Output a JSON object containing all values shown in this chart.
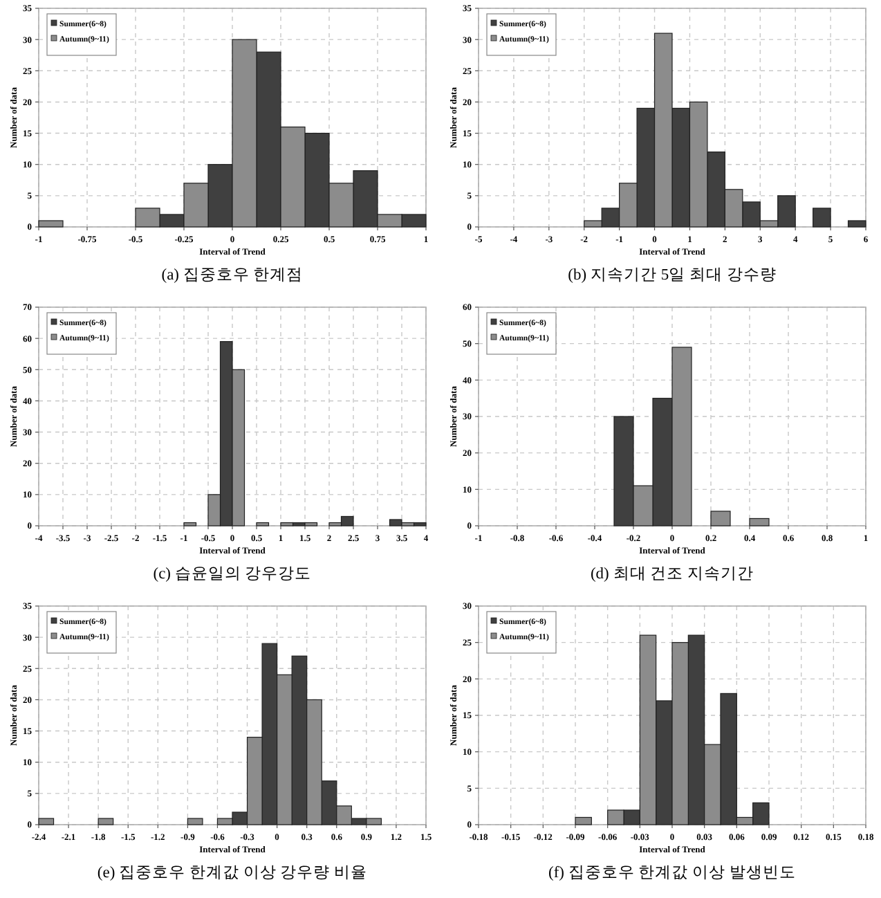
{
  "chart_data": [
    {
      "type": "bar",
      "title": "(a) 집중호우 한계점",
      "xlabel": "Interval of Trend",
      "ylabel": "Number of data",
      "legend": "top left",
      "grid": true,
      "xlim": [
        -1,
        1
      ],
      "xticks": [
        -1,
        -0.75,
        -0.5,
        -0.25,
        0,
        0.25,
        0.5,
        0.75,
        1
      ],
      "ylim": [
        0,
        35
      ],
      "yticks": [
        0,
        5,
        10,
        15,
        20,
        25,
        30,
        35
      ],
      "series": [
        {
          "name": "Summer(6~8)",
          "color": "#404040",
          "x": [
            -0.3125,
            -0.0625,
            0.1875,
            0.4375,
            0.6875,
            0.9375
          ],
          "values": [
            2,
            10,
            28,
            15,
            9,
            2
          ]
        },
        {
          "name": "Autumn(9~11)",
          "color": "#8c8c8c",
          "x": [
            -0.9375,
            -0.4375,
            -0.1875,
            0.0625,
            0.3125,
            0.5625,
            0.8125
          ],
          "values": [
            1,
            3,
            7,
            30,
            16,
            7,
            2
          ]
        }
      ]
    },
    {
      "type": "bar",
      "title": "(b) 지속기간 5일 최대 강수량",
      "xlabel": "Interval of Trend",
      "ylabel": "Number of data",
      "legend": "top left",
      "grid": true,
      "xlim": [
        -5,
        6
      ],
      "xticks": [
        -5,
        -4,
        -3,
        -2,
        -1,
        0,
        1,
        2,
        3,
        4,
        5,
        6
      ],
      "ylim": [
        0,
        35
      ],
      "yticks": [
        0,
        5,
        10,
        15,
        20,
        25,
        30,
        35
      ],
      "series": [
        {
          "name": "Summer(6~8)",
          "color": "#404040",
          "x": [
            -1.25,
            -0.25,
            0.75,
            1.75,
            2.75,
            3.75,
            4.75,
            5.75
          ],
          "values": [
            3,
            19,
            19,
            12,
            4,
            5,
            3,
            1
          ]
        },
        {
          "name": "Autumn(9~11)",
          "color": "#8c8c8c",
          "x": [
            -1.75,
            -0.75,
            0.25,
            1.25,
            2.25,
            3.25
          ],
          "values": [
            1,
            7,
            31,
            20,
            6,
            1
          ]
        }
      ]
    },
    {
      "type": "bar",
      "title": "(c) 습윤일의 강우강도",
      "xlabel": "Interval of Trend",
      "ylabel": "Number of data",
      "legend": "top left",
      "grid": true,
      "xlim": [
        -4,
        4
      ],
      "xticks": [
        -4,
        -3.5,
        -3,
        -2.5,
        -2,
        -1.5,
        -1,
        -0.5,
        0,
        0.5,
        1,
        1.5,
        2,
        2.5,
        3,
        3.5,
        4
      ],
      "ylim": [
        0,
        70
      ],
      "yticks": [
        0,
        10,
        20,
        30,
        40,
        50,
        60,
        70
      ],
      "series": [
        {
          "name": "Summer(6~8)",
          "color": "#404040",
          "x": [
            -0.125,
            1.375,
            2.375,
            3.375,
            3.875
          ],
          "values": [
            59,
            1,
            3,
            2,
            1
          ]
        },
        {
          "name": "Autumn(9~11)",
          "color": "#8c8c8c",
          "x": [
            -0.875,
            -0.375,
            0.125,
            0.625,
            1.125,
            1.625,
            2.125,
            3.625
          ],
          "values": [
            1,
            10,
            50,
            1,
            1,
            1,
            1,
            1
          ]
        }
      ]
    },
    {
      "type": "bar",
      "title": "(d) 최대 건조 지속기간",
      "xlabel": "Interval of Trend",
      "ylabel": "Number of data",
      "legend": "top left",
      "grid": true,
      "xlim": [
        -1,
        1
      ],
      "xticks": [
        -1,
        -0.8,
        -0.6,
        -0.4,
        -0.2,
        0,
        0.2,
        0.4,
        0.6,
        0.8,
        1
      ],
      "ylim": [
        0,
        60
      ],
      "yticks": [
        0,
        10,
        20,
        30,
        40,
        50,
        60
      ],
      "series": [
        {
          "name": "Summer(6~8)",
          "color": "#404040",
          "x": [
            -0.25,
            -0.05
          ],
          "values": [
            30,
            35
          ]
        },
        {
          "name": "Autumn(9~11)",
          "color": "#8c8c8c",
          "x": [
            -0.15,
            0.05,
            0.25,
            0.45
          ],
          "values": [
            11,
            49,
            4,
            2
          ]
        }
      ]
    },
    {
      "type": "bar",
      "title": "(e) 집중호우 한계값 이상 강우량 비율",
      "xlabel": "Interval of Trend",
      "ylabel": "Number of data",
      "legend": "top left",
      "grid": true,
      "xlim": [
        -2.4,
        1.5
      ],
      "xticks": [
        -2.4,
        -2.1,
        -1.8,
        -1.5,
        -1.2,
        -0.9,
        -0.6,
        -0.3,
        0,
        0.3,
        0.6,
        0.9,
        1.2,
        1.5
      ],
      "ylim": [
        0,
        35
      ],
      "yticks": [
        0,
        5,
        10,
        15,
        20,
        25,
        30,
        35
      ],
      "series": [
        {
          "name": "Summer(6~8)",
          "color": "#404040",
          "x": [
            -0.375,
            -0.075,
            0.225,
            0.525,
            0.825
          ],
          "values": [
            2,
            29,
            27,
            7,
            1
          ]
        },
        {
          "name": "Autumn(9~11)",
          "color": "#8c8c8c",
          "x": [
            -2.325,
            -1.725,
            -0.825,
            -0.525,
            -0.225,
            0.075,
            0.375,
            0.675,
            0.975
          ],
          "values": [
            1,
            1,
            1,
            1,
            14,
            24,
            20,
            3,
            1
          ]
        }
      ]
    },
    {
      "type": "bar",
      "title": "(f) 집중호우 한계값 이상 발생빈도",
      "xlabel": "Interval of Trend",
      "ylabel": "Number of data",
      "legend": "top left",
      "grid": true,
      "xlim": [
        -0.18,
        0.18
      ],
      "xticks": [
        -0.18,
        -0.15,
        -0.12,
        -0.09,
        -0.06,
        -0.03,
        0,
        0.03,
        0.06,
        0.09,
        0.12,
        0.15,
        0.18
      ],
      "ylim": [
        0,
        30
      ],
      "yticks": [
        0,
        5,
        10,
        15,
        20,
        25,
        30
      ],
      "series": [
        {
          "name": "Summer(6~8)",
          "color": "#404040",
          "x": [
            -0.0375,
            -0.0075,
            0.0225,
            0.0525,
            0.0825
          ],
          "values": [
            2,
            17,
            26,
            18,
            3
          ]
        },
        {
          "name": "Autumn(9~11)",
          "color": "#8c8c8c",
          "x": [
            -0.0825,
            -0.0525,
            -0.0225,
            0.0075,
            0.0375,
            0.0675
          ],
          "values": [
            1,
            2,
            26,
            25,
            11,
            1
          ]
        }
      ]
    }
  ]
}
